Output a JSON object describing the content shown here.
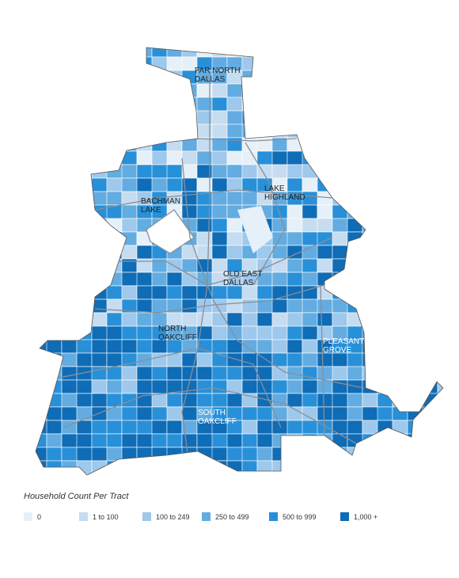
{
  "map": {
    "labels": [
      [
        "FAR NORTH",
        "DALLAS"
      ],
      [
        "BACHMAN",
        "LAKE"
      ],
      [
        "LAKE",
        "HIGHLAND"
      ],
      [
        "OLD EAST",
        "DALLAS"
      ],
      [
        "NORTH",
        "OAKCLIFF"
      ],
      [
        "PLEASANT",
        "GROVE"
      ],
      [
        "SOUTH",
        "OAKCLIFF"
      ]
    ]
  },
  "legend": {
    "title": "Household Count Per Tract",
    "items": [
      {
        "label": "0",
        "color": "#e6f0f9"
      },
      {
        "label": "1 to 100",
        "color": "#c6dcf0"
      },
      {
        "label": "100 to 249",
        "color": "#9ec8ec"
      },
      {
        "label": "250 to 499",
        "color": "#62ace1"
      },
      {
        "label": "500 to 999",
        "color": "#2890d8"
      },
      {
        "label": "1,000 +",
        "color": "#0f6cb6"
      }
    ]
  }
}
